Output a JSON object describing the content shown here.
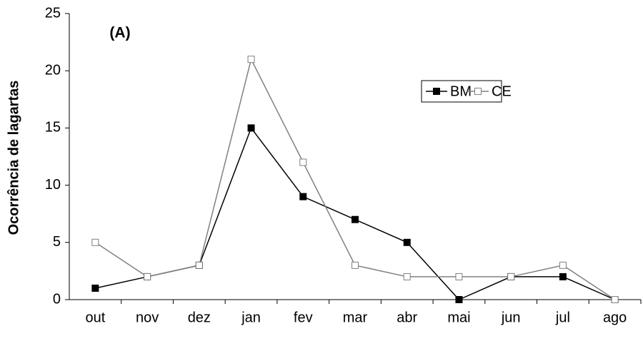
{
  "chart_data": {
    "type": "line",
    "annotation": "(A)",
    "ylabel": "Ocorrência de lagartas",
    "categories": [
      "out",
      "nov",
      "dez",
      "jan",
      "fev",
      "mar",
      "abr",
      "mai",
      "jun",
      "jul",
      "ago"
    ],
    "series": [
      {
        "name": "BM",
        "color": "#000000",
        "marker_fill": "#000000",
        "values": [
          1,
          2,
          3,
          15,
          9,
          7,
          5,
          0,
          2,
          2,
          0
        ]
      },
      {
        "name": "CE",
        "color": "#808080",
        "marker_fill": "#ffffff",
        "values": [
          5,
          2,
          3,
          21,
          12,
          3,
          2,
          2,
          2,
          3,
          0
        ]
      }
    ],
    "ylim": [
      0,
      25
    ],
    "yticks": [
      0,
      5,
      10,
      15,
      20,
      25
    ],
    "grid": false,
    "legend": "upper right"
  }
}
